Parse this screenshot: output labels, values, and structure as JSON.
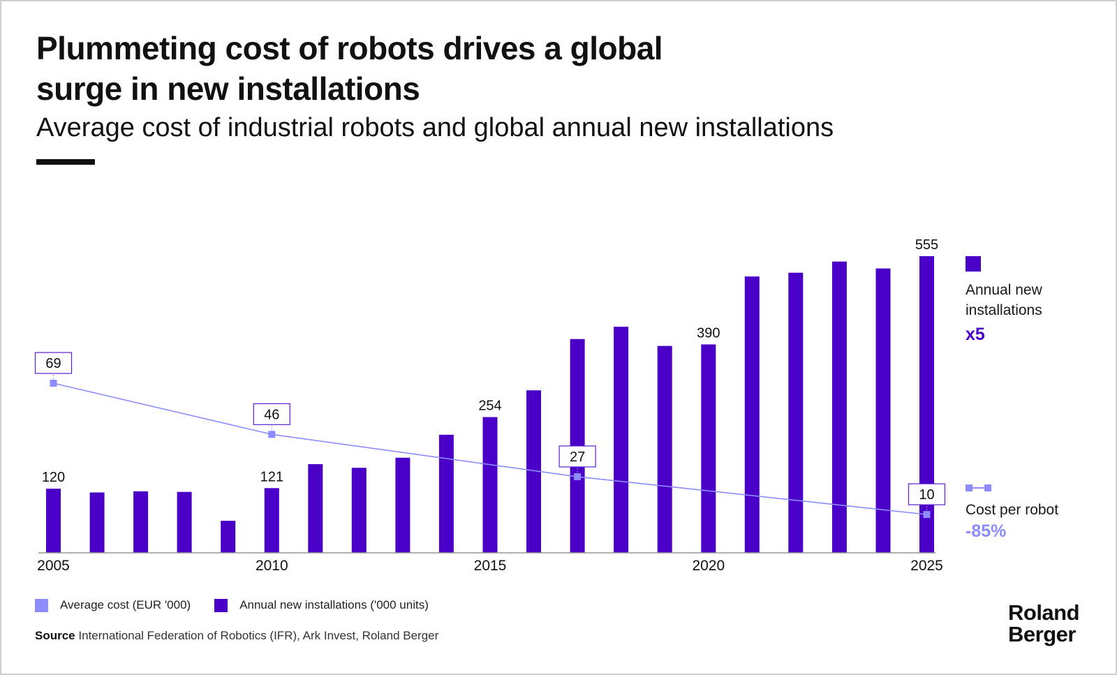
{
  "header": {
    "title": "Plummeting cost of robots drives a global surge in new installations",
    "subtitle": "Average cost of industrial robots and global annual new installations"
  },
  "colors": {
    "bars": "#4b00c8",
    "line": "#8c8cff",
    "label_box_border": "#5b1fd0",
    "text": "#111111"
  },
  "chart_data": {
    "type": "bar",
    "title": "Plummeting cost of robots drives a global surge in new installations",
    "subtitle": "Average cost of industrial robots and global annual new installations",
    "xlabel": "",
    "ylabel": "",
    "x": [
      2005,
      2006,
      2007,
      2008,
      2009,
      2010,
      2011,
      2012,
      2013,
      2014,
      2015,
      2016,
      2017,
      2018,
      2019,
      2020,
      2021,
      2022,
      2023,
      2024,
      2025
    ],
    "x_tick_labels": [
      "2005",
      "2010",
      "2015",
      "2020",
      "2025"
    ],
    "grid": false,
    "legend_position": "bottom-left",
    "series": [
      {
        "name": "Annual new installations ('000 units)",
        "type": "bar",
        "values": [
          120,
          113,
          115,
          114,
          60,
          121,
          166,
          159,
          178,
          221,
          254,
          304,
          400,
          423,
          387,
          390,
          517,
          524,
          545,
          532,
          555
        ],
        "labels": [
          {
            "x": 2005,
            "text": "120"
          },
          {
            "x": 2010,
            "text": "121"
          },
          {
            "x": 2015,
            "text": "254"
          },
          {
            "x": 2020,
            "text": "390"
          },
          {
            "x": 2025,
            "text": "555"
          }
        ],
        "change_label": "Annual new installations",
        "change": "x5"
      },
      {
        "name": "Average cost (EUR '000)",
        "type": "line",
        "points": [
          {
            "x": 2005,
            "y": 69,
            "text": "69"
          },
          {
            "x": 2010,
            "y": 46,
            "text": "46"
          },
          {
            "x": 2017,
            "y": 27,
            "text": "27"
          },
          {
            "x": 2025,
            "y": 10,
            "text": "10"
          }
        ],
        "change_label": "Cost per robot",
        "change": "-85%"
      }
    ]
  },
  "legend": {
    "cost_label": "Average cost (EUR '000)",
    "installs_label": "Annual new installations ('000 units)"
  },
  "side_legend": {
    "installs_label": "Annual new installations",
    "installs_change": "x5",
    "cost_label": "Cost per robot",
    "cost_change": "-85%"
  },
  "source": {
    "prefix": "Source",
    "text": "International Federation of Robotics (IFR), Ark Invest, Roland Berger"
  },
  "logo": {
    "line1": "Roland",
    "line2": "Berger"
  }
}
